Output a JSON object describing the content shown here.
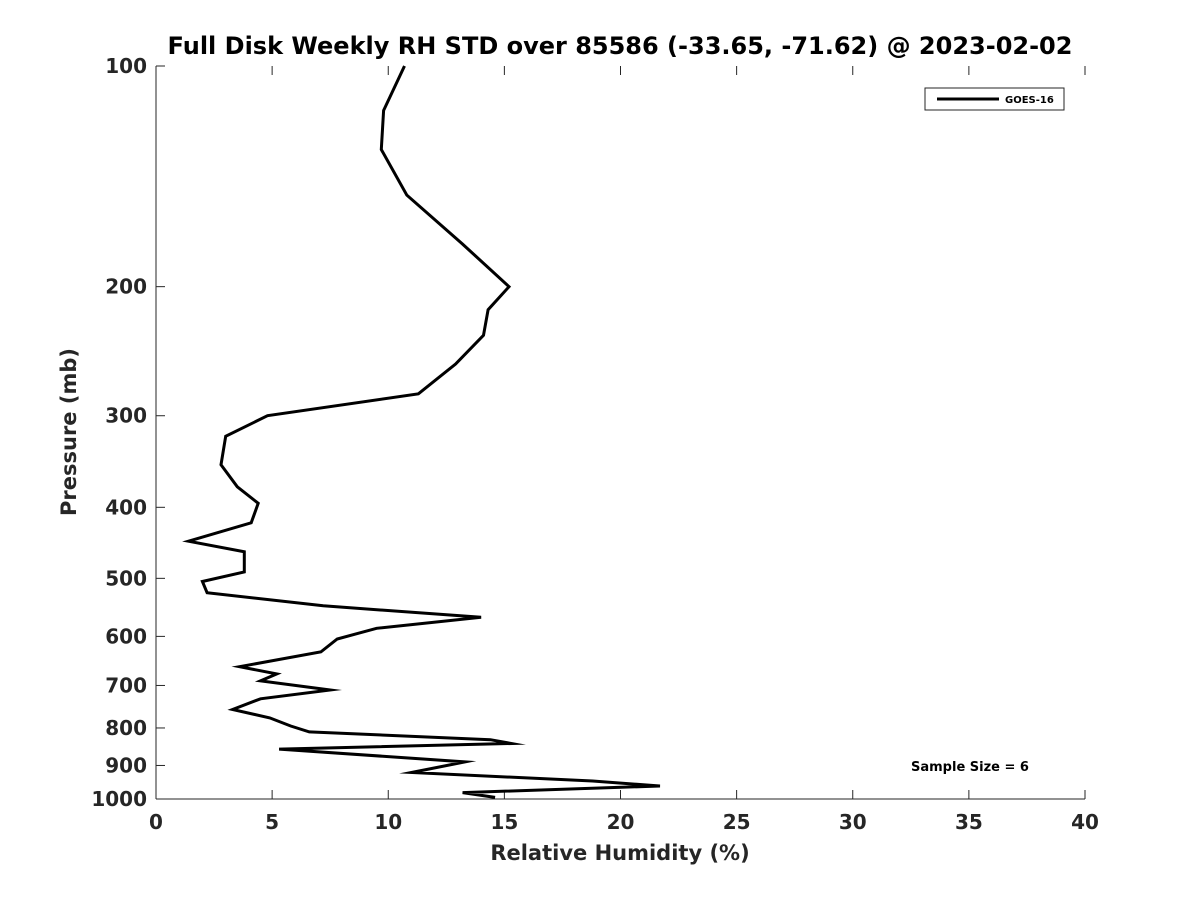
{
  "chart_data": {
    "type": "line",
    "title": "Full Disk Weekly RH STD over 85586 (-33.65, -71.62) @ 2023-02-02",
    "xlabel": "Relative Humidity (%)",
    "ylabel": "Pressure (mb)",
    "xlim": [
      0,
      40
    ],
    "ylim": [
      100,
      1000
    ],
    "y_scale": "log",
    "y_reversed": true,
    "x_ticks": [
      0,
      5,
      10,
      15,
      20,
      25,
      30,
      35,
      40
    ],
    "y_ticks": [
      100,
      200,
      300,
      400,
      500,
      600,
      700,
      800,
      900,
      1000
    ],
    "grid": false,
    "legend_position": "top-right",
    "annotation": "Sample Size = 6",
    "series": [
      {
        "name": "GOES-16",
        "color": "#000000",
        "x": [
          10.7,
          9.8,
          9.7,
          10.8,
          13.2,
          15.2,
          14.3,
          14.1,
          12.9,
          11.3,
          4.8,
          3.0,
          2.8,
          3.5,
          4.4,
          4.1,
          1.4,
          3.8,
          3.8,
          2.0,
          2.2,
          7.2,
          14.0,
          9.5,
          7.8,
          7.1,
          3.6,
          5.2,
          4.5,
          7.5,
          4.5,
          3.3,
          4.9,
          5.8,
          6.6,
          14.4,
          15.3,
          5.3,
          13.3,
          11.0,
          18.8,
          21.7,
          13.2,
          14.6
        ],
        "y": [
          100,
          115,
          130,
          150,
          175,
          200,
          215,
          233,
          255,
          280,
          300,
          320,
          350,
          375,
          395,
          420,
          445,
          460,
          490,
          505,
          523,
          545,
          565,
          585,
          605,
          630,
          660,
          675,
          690,
          710,
          730,
          755,
          775,
          795,
          810,
          830,
          840,
          855,
          890,
          920,
          945,
          960,
          980,
          995
        ]
      }
    ]
  }
}
